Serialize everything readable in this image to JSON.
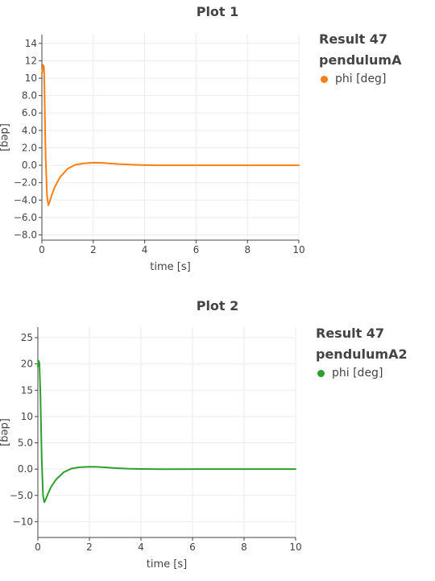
{
  "chart_data": [
    {
      "type": "line",
      "title": "Plot 1",
      "xlabel": "time [s]",
      "ylabel": "[deg]",
      "xlim": [
        0,
        10
      ],
      "ylim": [
        -8.6,
        15
      ],
      "xticks": [
        0,
        2,
        4,
        6,
        8,
        10
      ],
      "xtick_labels": [
        "0",
        "2",
        "4",
        "6",
        "8",
        "10"
      ],
      "yticks": [
        14,
        12,
        10,
        8,
        6,
        4,
        2,
        0,
        -2,
        -4,
        -6,
        -8
      ],
      "ytick_labels": [
        "14",
        "12",
        "10",
        "8.0",
        "6.0",
        "4.0",
        "2.0",
        "0.0",
        "−2.0",
        "−4.0",
        "−6.0",
        "−8.0"
      ],
      "grid": true,
      "legend_position": "top-right outside",
      "legend_title": [
        "Result 47",
        "pendulumA"
      ],
      "series": [
        {
          "name": "phi [deg]",
          "color": "#ff7f0e",
          "x": [
            0,
            0.05,
            0.08,
            0.1,
            0.12,
            0.15,
            0.2,
            0.25,
            0.3,
            0.4,
            0.5,
            0.7,
            1.0,
            1.3,
            1.6,
            2.0,
            2.3,
            2.6,
            3.0,
            3.5,
            4.0,
            4.5,
            5.0,
            6.0,
            7.0,
            8.0,
            9.0,
            10.0
          ],
          "y": [
            10.5,
            11.5,
            11.3,
            9.0,
            5.0,
            0.5,
            -3.5,
            -4.6,
            -4.2,
            -3.3,
            -2.5,
            -1.4,
            -0.4,
            0.05,
            0.2,
            0.3,
            0.28,
            0.22,
            0.13,
            0.06,
            0.02,
            0.0,
            -0.01,
            0.0,
            0.0,
            0.0,
            0.0,
            0.0
          ]
        }
      ]
    },
    {
      "type": "line",
      "title": "Plot 2",
      "xlabel": "time [s]",
      "ylabel": "[deg]",
      "xlim": [
        0,
        10
      ],
      "ylim": [
        -13,
        27
      ],
      "xticks": [
        0,
        2,
        4,
        6,
        8,
        10
      ],
      "xtick_labels": [
        "0",
        "2",
        "4",
        "6",
        "8",
        "10"
      ],
      "yticks": [
        25,
        20,
        15,
        10,
        5,
        0,
        -5,
        -10
      ],
      "ytick_labels": [
        "25",
        "20",
        "15",
        "10",
        "5.0",
        "0.0",
        "−5.0",
        "−10"
      ],
      "grid": true,
      "legend_position": "top-right outside",
      "legend_title": [
        "Result 47",
        "pendulumA2"
      ],
      "series": [
        {
          "name": "phi [deg]",
          "color": "#2ca02c",
          "x": [
            0,
            0.03,
            0.06,
            0.1,
            0.15,
            0.2,
            0.25,
            0.3,
            0.4,
            0.5,
            0.7,
            1.0,
            1.3,
            1.6,
            2.0,
            2.3,
            2.6,
            3.0,
            3.5,
            4.0,
            4.5,
            5.0,
            6.0,
            7.0,
            8.0,
            9.0,
            10.0
          ],
          "y": [
            19.5,
            20.6,
            20.2,
            14.0,
            2.0,
            -5.0,
            -6.3,
            -5.8,
            -4.6,
            -3.5,
            -2.0,
            -0.6,
            0.1,
            0.35,
            0.45,
            0.42,
            0.33,
            0.2,
            0.08,
            0.02,
            0.0,
            -0.01,
            0.0,
            0.0,
            0.0,
            0.0,
            0.0
          ]
        }
      ]
    }
  ]
}
